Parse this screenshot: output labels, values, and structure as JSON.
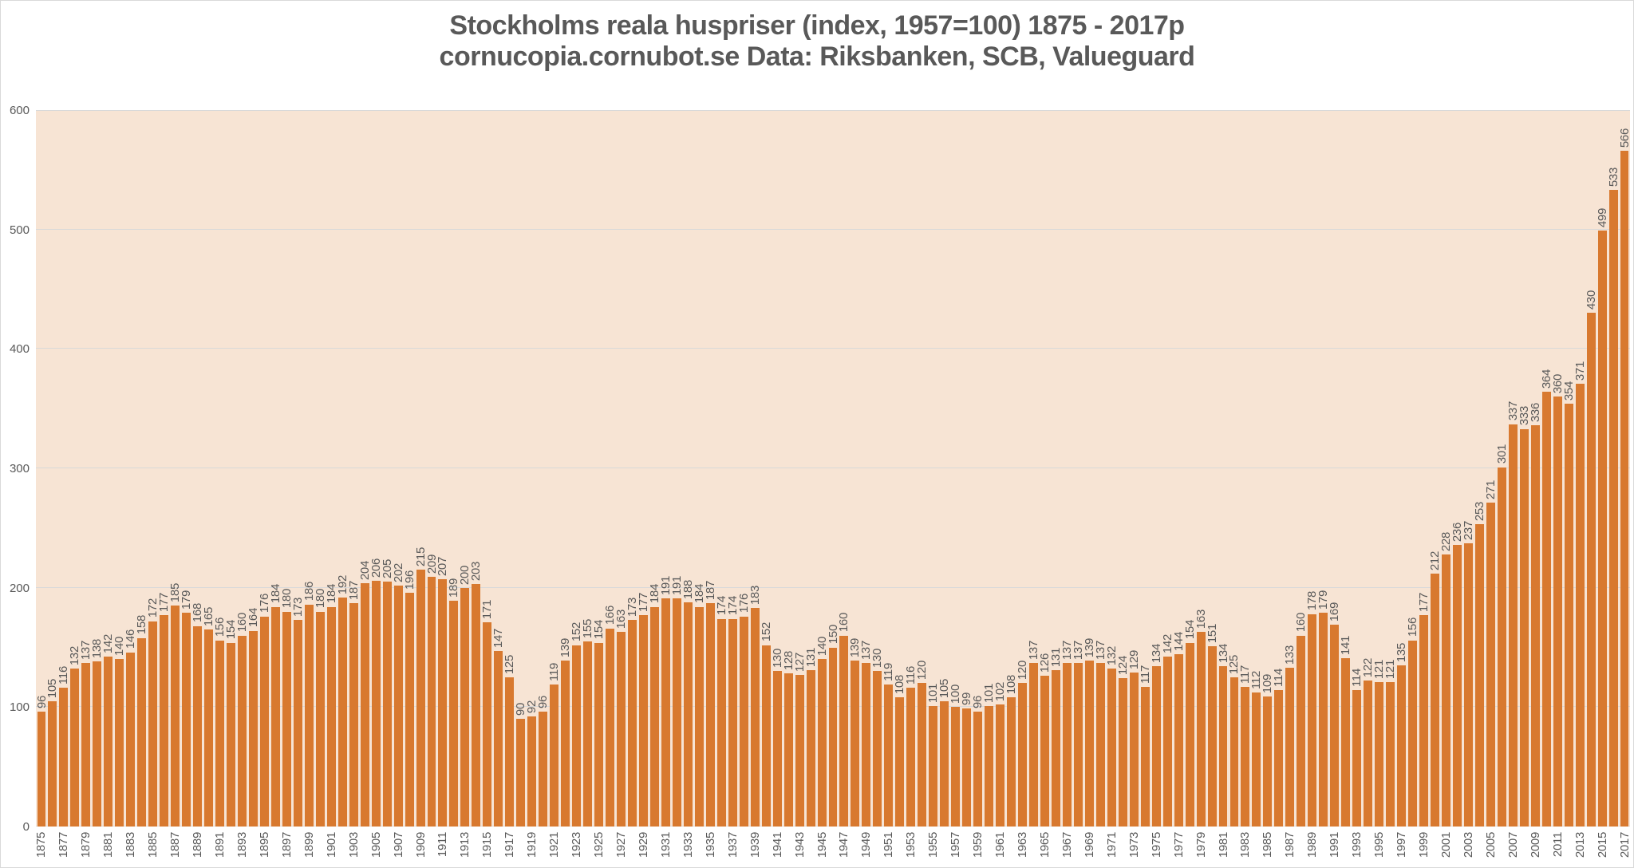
{
  "window": {
    "background": "#FFFFFF",
    "border_color": "#D9D9D9"
  },
  "title": {
    "line1": "Stockholms reala huspriser (index, 1957=100) 1875 - 2017p",
    "line2": "cornucopia.cornubot.se Data: Riksbanken, SCB, Valueguard",
    "color": "#595959"
  },
  "chart_data": {
    "type": "bar",
    "title": "Stockholms reala huspriser (index, 1957=100) 1875 - 2017p",
    "subtitle": "cornucopia.cornubot.se Data: Riksbanken, SCB, Valueguard",
    "x_start_year": 1875,
    "x_end_year": 2017,
    "x_tick_step": 2,
    "x_tick_labels": [
      "1875",
      "1877",
      "1879",
      "1881",
      "1883",
      "1885",
      "1887",
      "1889",
      "1891",
      "1893",
      "1895",
      "1897",
      "1899",
      "1901",
      "1903",
      "1905",
      "1907",
      "1909",
      "1911",
      "1913",
      "1915",
      "1917",
      "1919",
      "1921",
      "1923",
      "1925",
      "1927",
      "1929",
      "1931",
      "1933",
      "1935",
      "1937",
      "1939",
      "1941",
      "1943",
      "1945",
      "1947",
      "1949",
      "1951",
      "1953",
      "1955",
      "1957",
      "1959",
      "1961",
      "1963",
      "1965",
      "1967",
      "1969",
      "1971",
      "1973",
      "1975",
      "1977",
      "1979",
      "1981",
      "1983",
      "1985",
      "1987",
      "1989",
      "1991",
      "1993",
      "1995",
      "1997",
      "1999",
      "2001",
      "2003",
      "2005",
      "2007",
      "2009",
      "2011",
      "2013",
      "2015",
      "2017"
    ],
    "values": [
      96,
      105,
      116,
      132,
      137,
      138,
      142,
      140,
      146,
      158,
      172,
      177,
      185,
      179,
      168,
      165,
      156,
      154,
      160,
      164,
      176,
      184,
      180,
      173,
      186,
      180,
      184,
      192,
      187,
      204,
      206,
      205,
      202,
      196,
      215,
      209,
      207,
      189,
      200,
      203,
      171,
      147,
      125,
      90,
      92,
      96,
      119,
      139,
      152,
      155,
      154,
      166,
      163,
      173,
      177,
      184,
      191,
      191,
      188,
      184,
      187,
      174,
      174,
      176,
      183,
      152,
      130,
      128,
      127,
      131,
      140,
      150,
      160,
      139,
      137,
      130,
      119,
      108,
      116,
      120,
      101,
      105,
      100,
      99,
      96,
      101,
      102,
      108,
      120,
      137,
      126,
      131,
      137,
      137,
      139,
      137,
      132,
      124,
      129,
      117,
      134,
      142,
      144,
      154,
      163,
      151,
      134,
      125,
      117,
      112,
      109,
      114,
      133,
      160,
      178,
      179,
      169,
      141,
      114,
      122,
      121,
      121,
      135,
      156,
      177,
      212,
      228,
      236,
      237,
      253,
      271,
      301,
      337,
      333,
      336,
      364,
      360,
      354,
      371,
      430,
      499,
      533,
      566
    ],
    "value_labels_shown": true,
    "ylim": [
      0,
      600
    ],
    "y_ticks": [
      0,
      100,
      200,
      300,
      400,
      500,
      600
    ],
    "grid": true,
    "legend": "none",
    "colors": {
      "bar": "#D8792F",
      "plot_background": "#F7E4D4",
      "gridline": "#D9D9D9",
      "label": "#595959"
    }
  }
}
